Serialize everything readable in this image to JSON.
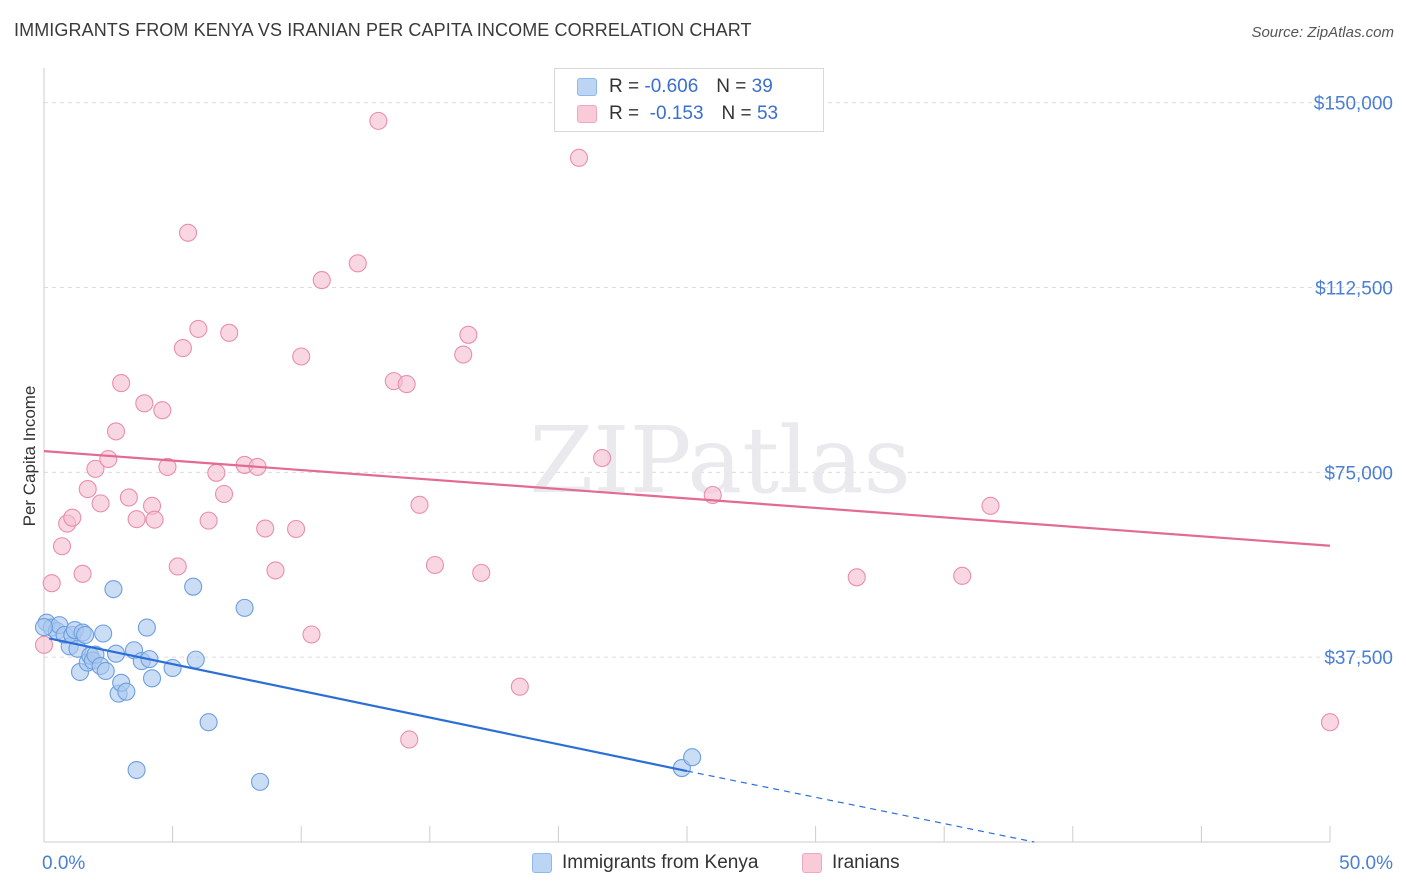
{
  "title": "IMMIGRANTS FROM KENYA VS IRANIAN PER CAPITA INCOME CORRELATION CHART",
  "source": "Source: ZipAtlas.com",
  "watermark": "ZIPatlas",
  "legend": {
    "rows": [
      {
        "r_label": "R =",
        "r_value": "-0.606",
        "n_label": "N =",
        "n_value": "39",
        "color": "#8fb8ec",
        "fill": "#bcd5f5"
      },
      {
        "r_label": "R =",
        "r_value": "-0.153",
        "n_label": "N =",
        "n_value": "53",
        "color": "#f0a7bf",
        "fill": "#f9cbd9"
      }
    ]
  },
  "colors": {
    "kenya_point": "#a9c8ef",
    "kenya_stroke": "#6d9fe0",
    "kenya_line": "#2b6fd6",
    "iran_point": "#f6bed0",
    "iran_stroke": "#ea8eab",
    "iran_line": "#e26a93",
    "axis_tick_text": "#4a7fd4",
    "grid": "#dcdcdc"
  },
  "chart_data": {
    "type": "scatter",
    "title": "IMMIGRANTS FROM KENYA VS IRANIAN PER CAPITA INCOME CORRELATION CHART",
    "xlabel": "",
    "ylabel": "Per Capita Income",
    "xlim": [
      0,
      50
    ],
    "ylim": [
      0,
      155000
    ],
    "x_tick_labels": [
      "0.0%",
      "50.0%"
    ],
    "y_ticks": [
      37500,
      75000,
      112500,
      150000
    ],
    "y_tick_labels": [
      "$37,500",
      "$75,000",
      "$112,500",
      "$150,000"
    ],
    "grid": true,
    "legend_position": "bottom",
    "series": [
      {
        "name": "Immigrants from Kenya",
        "r": -0.606,
        "n": 39,
        "points": [
          [
            0.1,
            44500
          ],
          [
            0.3,
            43500
          ],
          [
            0.5,
            42800
          ],
          [
            0.6,
            44000
          ],
          [
            0.8,
            42000
          ],
          [
            1.0,
            39700
          ],
          [
            1.1,
            42000
          ],
          [
            1.2,
            43000
          ],
          [
            1.3,
            39200
          ],
          [
            1.4,
            34500
          ],
          [
            1.5,
            42500
          ],
          [
            1.6,
            42000
          ],
          [
            1.7,
            36400
          ],
          [
            1.8,
            37800
          ],
          [
            1.9,
            36800
          ],
          [
            2.0,
            38000
          ],
          [
            2.2,
            35700
          ],
          [
            2.3,
            42300
          ],
          [
            2.4,
            34700
          ],
          [
            2.7,
            51300
          ],
          [
            2.8,
            38200
          ],
          [
            2.9,
            30100
          ],
          [
            3.0,
            32300
          ],
          [
            3.2,
            30500
          ],
          [
            3.5,
            38900
          ],
          [
            3.6,
            14600
          ],
          [
            3.8,
            36700
          ],
          [
            4.0,
            43500
          ],
          [
            4.1,
            37100
          ],
          [
            4.2,
            33200
          ],
          [
            5.0,
            35300
          ],
          [
            5.8,
            51800
          ],
          [
            5.9,
            37000
          ],
          [
            6.4,
            24300
          ],
          [
            7.8,
            47500
          ],
          [
            8.4,
            12200
          ],
          [
            24.8,
            15000
          ],
          [
            25.2,
            17200
          ],
          [
            0.0,
            43600
          ]
        ],
        "trend": {
          "x_start": 0.2,
          "y_start": 41300,
          "x_solid_end": 25.0,
          "y_solid_end": 14400,
          "x_dash_end": 38.5,
          "y_dash_end": 0
        }
      },
      {
        "name": "Iranians",
        "r": -0.153,
        "n": 53,
        "points": [
          [
            0.0,
            40000
          ],
          [
            0.3,
            52500
          ],
          [
            0.7,
            60000
          ],
          [
            0.9,
            64600
          ],
          [
            1.1,
            65800
          ],
          [
            1.5,
            54400
          ],
          [
            1.7,
            71600
          ],
          [
            2.0,
            75700
          ],
          [
            2.2,
            68700
          ],
          [
            2.5,
            77700
          ],
          [
            2.8,
            83300
          ],
          [
            3.0,
            93100
          ],
          [
            3.3,
            69900
          ],
          [
            3.6,
            65500
          ],
          [
            3.9,
            89000
          ],
          [
            4.2,
            68200
          ],
          [
            4.3,
            65400
          ],
          [
            4.6,
            87600
          ],
          [
            4.8,
            76100
          ],
          [
            5.2,
            55900
          ],
          [
            5.4,
            100200
          ],
          [
            5.6,
            123600
          ],
          [
            6.0,
            104100
          ],
          [
            6.4,
            65200
          ],
          [
            6.7,
            74900
          ],
          [
            7.0,
            70600
          ],
          [
            7.2,
            103300
          ],
          [
            7.8,
            76500
          ],
          [
            8.3,
            76100
          ],
          [
            8.6,
            63600
          ],
          [
            9.0,
            55100
          ],
          [
            9.8,
            63500
          ],
          [
            10.0,
            98500
          ],
          [
            10.4,
            42100
          ],
          [
            10.8,
            114000
          ],
          [
            12.2,
            117400
          ],
          [
            13.0,
            146300
          ],
          [
            13.6,
            93500
          ],
          [
            14.1,
            92900
          ],
          [
            14.2,
            20800
          ],
          [
            14.6,
            68400
          ],
          [
            15.2,
            56200
          ],
          [
            16.3,
            98900
          ],
          [
            16.5,
            102900
          ],
          [
            17.0,
            54600
          ],
          [
            18.5,
            31500
          ],
          [
            20.8,
            138800
          ],
          [
            21.7,
            77900
          ],
          [
            26.0,
            70400
          ],
          [
            31.6,
            53700
          ],
          [
            35.7,
            54000
          ],
          [
            36.8,
            68200
          ],
          [
            50.0,
            24300
          ]
        ],
        "trend": {
          "x_start": 0.0,
          "y_start": 79300,
          "x_end": 50.0,
          "y_end": 60100
        }
      }
    ]
  }
}
